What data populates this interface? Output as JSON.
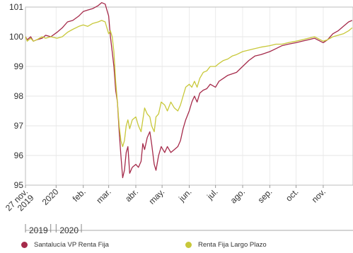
{
  "chart_data": {
    "type": "line",
    "ylim": [
      95,
      101
    ],
    "yticks": [
      95,
      96,
      97,
      98,
      99,
      100,
      101
    ],
    "x_range": [
      "2019-11-27",
      "2020-12-05"
    ],
    "grid": true,
    "legend_position": "bottom",
    "xticks": [
      {
        "date": "2019-11-27",
        "lines": [
          "27 nov.",
          "2019"
        ]
      },
      {
        "date": "2020-01-01",
        "lines": [
          "2020"
        ]
      },
      {
        "date": "2020-02-01",
        "lines": [
          "feb."
        ]
      },
      {
        "date": "2020-03-01",
        "lines": [
          "mar."
        ]
      },
      {
        "date": "2020-04-01",
        "lines": [
          "abr."
        ]
      },
      {
        "date": "2020-05-01",
        "lines": [
          "may."
        ]
      },
      {
        "date": "2020-06-01",
        "lines": [
          "jun."
        ]
      },
      {
        "date": "2020-07-01",
        "lines": [
          "jul."
        ]
      },
      {
        "date": "2020-08-01",
        "lines": [
          "ago."
        ]
      },
      {
        "date": "2020-09-01",
        "lines": [
          "sep."
        ]
      },
      {
        "date": "2020-10-01",
        "lines": [
          "oct."
        ]
      },
      {
        "date": "2020-11-01",
        "lines": [
          "nov."
        ]
      }
    ],
    "timeline": [
      {
        "label": "2019",
        "start": "2019-11-27",
        "end": "2019-12-31"
      },
      {
        "label": "2020",
        "start": "2020-01-01",
        "end": "2020-12-05"
      }
    ],
    "series": [
      {
        "name": "Santalucía VP Renta Fija",
        "color": "#a52a4a",
        "points": [
          [
            "2019-11-27",
            100.0
          ],
          [
            "2019-11-29",
            99.9
          ],
          [
            "2019-12-03",
            100.0
          ],
          [
            "2019-12-06",
            99.85
          ],
          [
            "2019-12-10",
            99.9
          ],
          [
            "2019-12-16",
            99.95
          ],
          [
            "2019-12-20",
            100.05
          ],
          [
            "2019-12-26",
            100.0
          ],
          [
            "2020-01-02",
            100.15
          ],
          [
            "2020-01-08",
            100.3
          ],
          [
            "2020-01-14",
            100.5
          ],
          [
            "2020-01-20",
            100.55
          ],
          [
            "2020-01-27",
            100.7
          ],
          [
            "2020-02-01",
            100.85
          ],
          [
            "2020-02-06",
            100.9
          ],
          [
            "2020-02-12",
            100.95
          ],
          [
            "2020-02-18",
            101.05
          ],
          [
            "2020-02-22",
            101.15
          ],
          [
            "2020-02-26",
            101.1
          ],
          [
            "2020-02-28",
            100.9
          ],
          [
            "2020-03-01",
            100.7
          ],
          [
            "2020-03-03",
            100.0
          ],
          [
            "2020-03-05",
            99.5
          ],
          [
            "2020-03-07",
            99.0
          ],
          [
            "2020-03-09",
            98.2
          ],
          [
            "2020-03-11",
            97.8
          ],
          [
            "2020-03-13",
            96.8
          ],
          [
            "2020-03-15",
            96.0
          ],
          [
            "2020-03-17",
            95.25
          ],
          [
            "2020-03-19",
            95.5
          ],
          [
            "2020-03-21",
            96.1
          ],
          [
            "2020-03-23",
            96.3
          ],
          [
            "2020-03-25",
            95.4
          ],
          [
            "2020-03-28",
            95.6
          ],
          [
            "2020-04-01",
            95.7
          ],
          [
            "2020-04-04",
            95.6
          ],
          [
            "2020-04-07",
            95.8
          ],
          [
            "2020-04-09",
            96.4
          ],
          [
            "2020-04-11",
            96.2
          ],
          [
            "2020-04-14",
            96.6
          ],
          [
            "2020-04-17",
            96.8
          ],
          [
            "2020-04-19",
            96.4
          ],
          [
            "2020-04-22",
            95.7
          ],
          [
            "2020-04-24",
            95.5
          ],
          [
            "2020-04-27",
            96.0
          ],
          [
            "2020-04-30",
            96.3
          ],
          [
            "2020-05-04",
            96.1
          ],
          [
            "2020-05-07",
            96.3
          ],
          [
            "2020-05-11",
            96.1
          ],
          [
            "2020-05-15",
            96.2
          ],
          [
            "2020-05-19",
            96.3
          ],
          [
            "2020-05-22",
            96.5
          ],
          [
            "2020-05-25",
            96.9
          ],
          [
            "2020-05-28",
            97.2
          ],
          [
            "2020-06-01",
            97.5
          ],
          [
            "2020-06-04",
            97.8
          ],
          [
            "2020-06-07",
            98.0
          ],
          [
            "2020-06-10",
            97.8
          ],
          [
            "2020-06-13",
            98.1
          ],
          [
            "2020-06-17",
            98.2
          ],
          [
            "2020-06-21",
            98.25
          ],
          [
            "2020-06-25",
            98.4
          ],
          [
            "2020-07-01",
            98.3
          ],
          [
            "2020-07-05",
            98.5
          ],
          [
            "2020-07-10",
            98.6
          ],
          [
            "2020-07-15",
            98.7
          ],
          [
            "2020-07-20",
            98.75
          ],
          [
            "2020-07-25",
            98.8
          ],
          [
            "2020-08-01",
            99.0
          ],
          [
            "2020-08-08",
            99.2
          ],
          [
            "2020-08-15",
            99.35
          ],
          [
            "2020-08-22",
            99.4
          ],
          [
            "2020-09-01",
            99.5
          ],
          [
            "2020-09-08",
            99.6
          ],
          [
            "2020-09-15",
            99.7
          ],
          [
            "2020-09-22",
            99.75
          ],
          [
            "2020-10-01",
            99.8
          ],
          [
            "2020-10-08",
            99.85
          ],
          [
            "2020-10-15",
            99.9
          ],
          [
            "2020-10-22",
            99.95
          ],
          [
            "2020-11-01",
            99.8
          ],
          [
            "2020-11-06",
            99.9
          ],
          [
            "2020-11-12",
            100.1
          ],
          [
            "2020-11-18",
            100.2
          ],
          [
            "2020-11-24",
            100.35
          ],
          [
            "2020-11-30",
            100.5
          ],
          [
            "2020-12-04",
            100.55
          ]
        ]
      },
      {
        "name": "Renta Fija Largo Plazo",
        "color": "#c8c83a",
        "points": [
          [
            "2019-11-27",
            100.0
          ],
          [
            "2019-11-29",
            99.85
          ],
          [
            "2019-12-03",
            99.95
          ],
          [
            "2019-12-06",
            99.85
          ],
          [
            "2019-12-10",
            99.9
          ],
          [
            "2019-12-16",
            100.0
          ],
          [
            "2019-12-20",
            99.95
          ],
          [
            "2019-12-26",
            100.0
          ],
          [
            "2020-01-02",
            99.95
          ],
          [
            "2020-01-08",
            100.0
          ],
          [
            "2020-01-14",
            100.15
          ],
          [
            "2020-01-20",
            100.25
          ],
          [
            "2020-01-27",
            100.35
          ],
          [
            "2020-02-01",
            100.4
          ],
          [
            "2020-02-06",
            100.35
          ],
          [
            "2020-02-12",
            100.45
          ],
          [
            "2020-02-18",
            100.5
          ],
          [
            "2020-02-22",
            100.55
          ],
          [
            "2020-02-26",
            100.5
          ],
          [
            "2020-02-28",
            100.3
          ],
          [
            "2020-03-01",
            100.1
          ],
          [
            "2020-03-03",
            100.2
          ],
          [
            "2020-03-05",
            100.0
          ],
          [
            "2020-03-07",
            99.5
          ],
          [
            "2020-03-09",
            98.5
          ],
          [
            "2020-03-11",
            97.8
          ],
          [
            "2020-03-13",
            97.0
          ],
          [
            "2020-03-15",
            96.5
          ],
          [
            "2020-03-17",
            96.3
          ],
          [
            "2020-03-19",
            96.5
          ],
          [
            "2020-03-21",
            97.0
          ],
          [
            "2020-03-23",
            97.2
          ],
          [
            "2020-03-25",
            96.9
          ],
          [
            "2020-03-28",
            97.2
          ],
          [
            "2020-04-01",
            97.3
          ],
          [
            "2020-04-04",
            97.0
          ],
          [
            "2020-04-07",
            96.8
          ],
          [
            "2020-04-09",
            97.2
          ],
          [
            "2020-04-11",
            97.6
          ],
          [
            "2020-04-14",
            97.4
          ],
          [
            "2020-04-17",
            97.3
          ],
          [
            "2020-04-19",
            97.0
          ],
          [
            "2020-04-22",
            96.8
          ],
          [
            "2020-04-24",
            97.3
          ],
          [
            "2020-04-27",
            97.4
          ],
          [
            "2020-04-30",
            97.8
          ],
          [
            "2020-05-04",
            97.7
          ],
          [
            "2020-05-07",
            97.5
          ],
          [
            "2020-05-11",
            97.8
          ],
          [
            "2020-05-15",
            97.6
          ],
          [
            "2020-05-19",
            97.5
          ],
          [
            "2020-05-22",
            97.7
          ],
          [
            "2020-05-25",
            98.0
          ],
          [
            "2020-05-28",
            98.3
          ],
          [
            "2020-06-01",
            98.4
          ],
          [
            "2020-06-04",
            98.3
          ],
          [
            "2020-06-07",
            98.5
          ],
          [
            "2020-06-10",
            98.3
          ],
          [
            "2020-06-13",
            98.6
          ],
          [
            "2020-06-17",
            98.8
          ],
          [
            "2020-06-21",
            98.85
          ],
          [
            "2020-06-25",
            99.0
          ],
          [
            "2020-07-01",
            99.0
          ],
          [
            "2020-07-05",
            99.1
          ],
          [
            "2020-07-10",
            99.2
          ],
          [
            "2020-07-15",
            99.25
          ],
          [
            "2020-07-20",
            99.35
          ],
          [
            "2020-07-25",
            99.4
          ],
          [
            "2020-08-01",
            99.5
          ],
          [
            "2020-08-08",
            99.55
          ],
          [
            "2020-08-15",
            99.6
          ],
          [
            "2020-08-22",
            99.65
          ],
          [
            "2020-09-01",
            99.7
          ],
          [
            "2020-09-08",
            99.75
          ],
          [
            "2020-09-15",
            99.75
          ],
          [
            "2020-09-22",
            99.8
          ],
          [
            "2020-10-01",
            99.85
          ],
          [
            "2020-10-08",
            99.9
          ],
          [
            "2020-10-15",
            99.95
          ],
          [
            "2020-10-22",
            100.0
          ],
          [
            "2020-11-01",
            99.85
          ],
          [
            "2020-11-06",
            99.9
          ],
          [
            "2020-11-12",
            100.0
          ],
          [
            "2020-11-18",
            100.05
          ],
          [
            "2020-11-24",
            100.1
          ],
          [
            "2020-11-30",
            100.2
          ],
          [
            "2020-12-04",
            100.3
          ]
        ]
      }
    ]
  }
}
